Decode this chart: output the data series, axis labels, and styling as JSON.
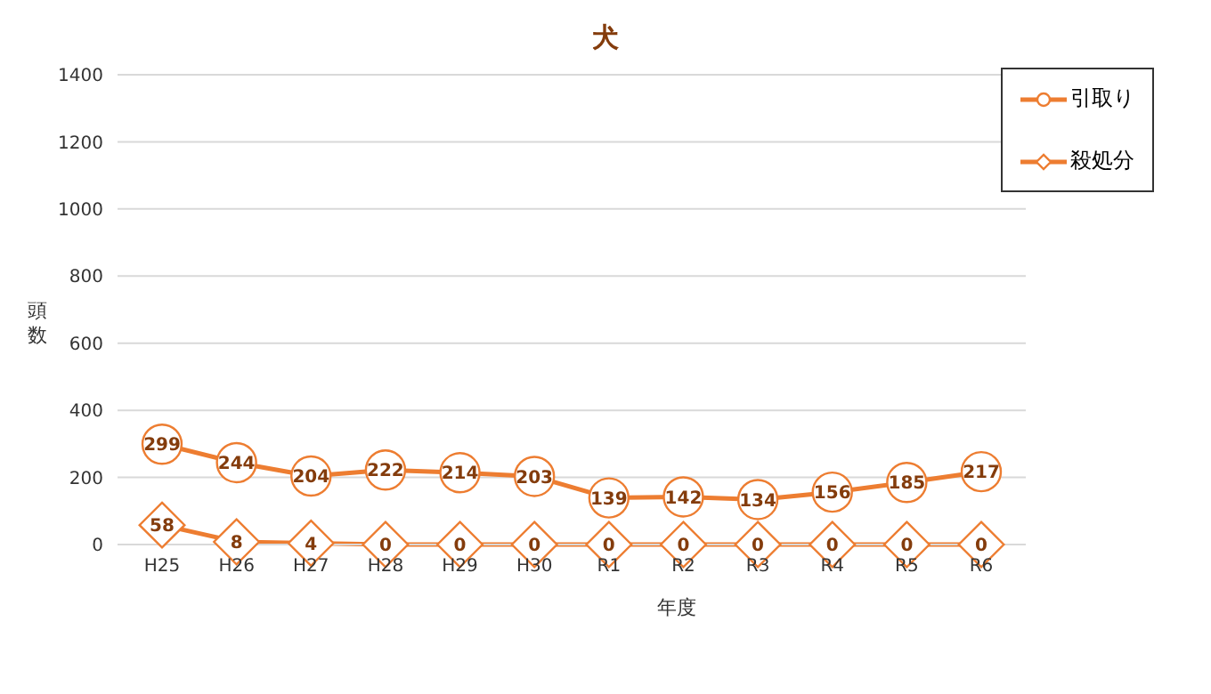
{
  "chart_data": {
    "type": "line",
    "title": "犬",
    "xlabel": "年度",
    "ylabel": "頭数",
    "categories": [
      "H25",
      "H26",
      "H27",
      "H28",
      "H29",
      "H30",
      "R1",
      "R2",
      "R3",
      "R4",
      "R5",
      "R6"
    ],
    "series": [
      {
        "name": "引取り",
        "color": "#ed7d31",
        "marker": "circle",
        "values": [
          299,
          244,
          204,
          222,
          214,
          203,
          139,
          142,
          134,
          156,
          185,
          217
        ]
      },
      {
        "name": "殺処分",
        "color": "#ed7d31",
        "marker": "diamond",
        "values": [
          58,
          8,
          4,
          0,
          0,
          0,
          0,
          0,
          0,
          0,
          0,
          0
        ]
      }
    ],
    "ylim": [
      0,
      1400
    ],
    "yticks": [
      0,
      200,
      400,
      600,
      800,
      1000,
      1200,
      1400
    ],
    "grid": "y",
    "legend": "top right",
    "data_labels": true
  }
}
